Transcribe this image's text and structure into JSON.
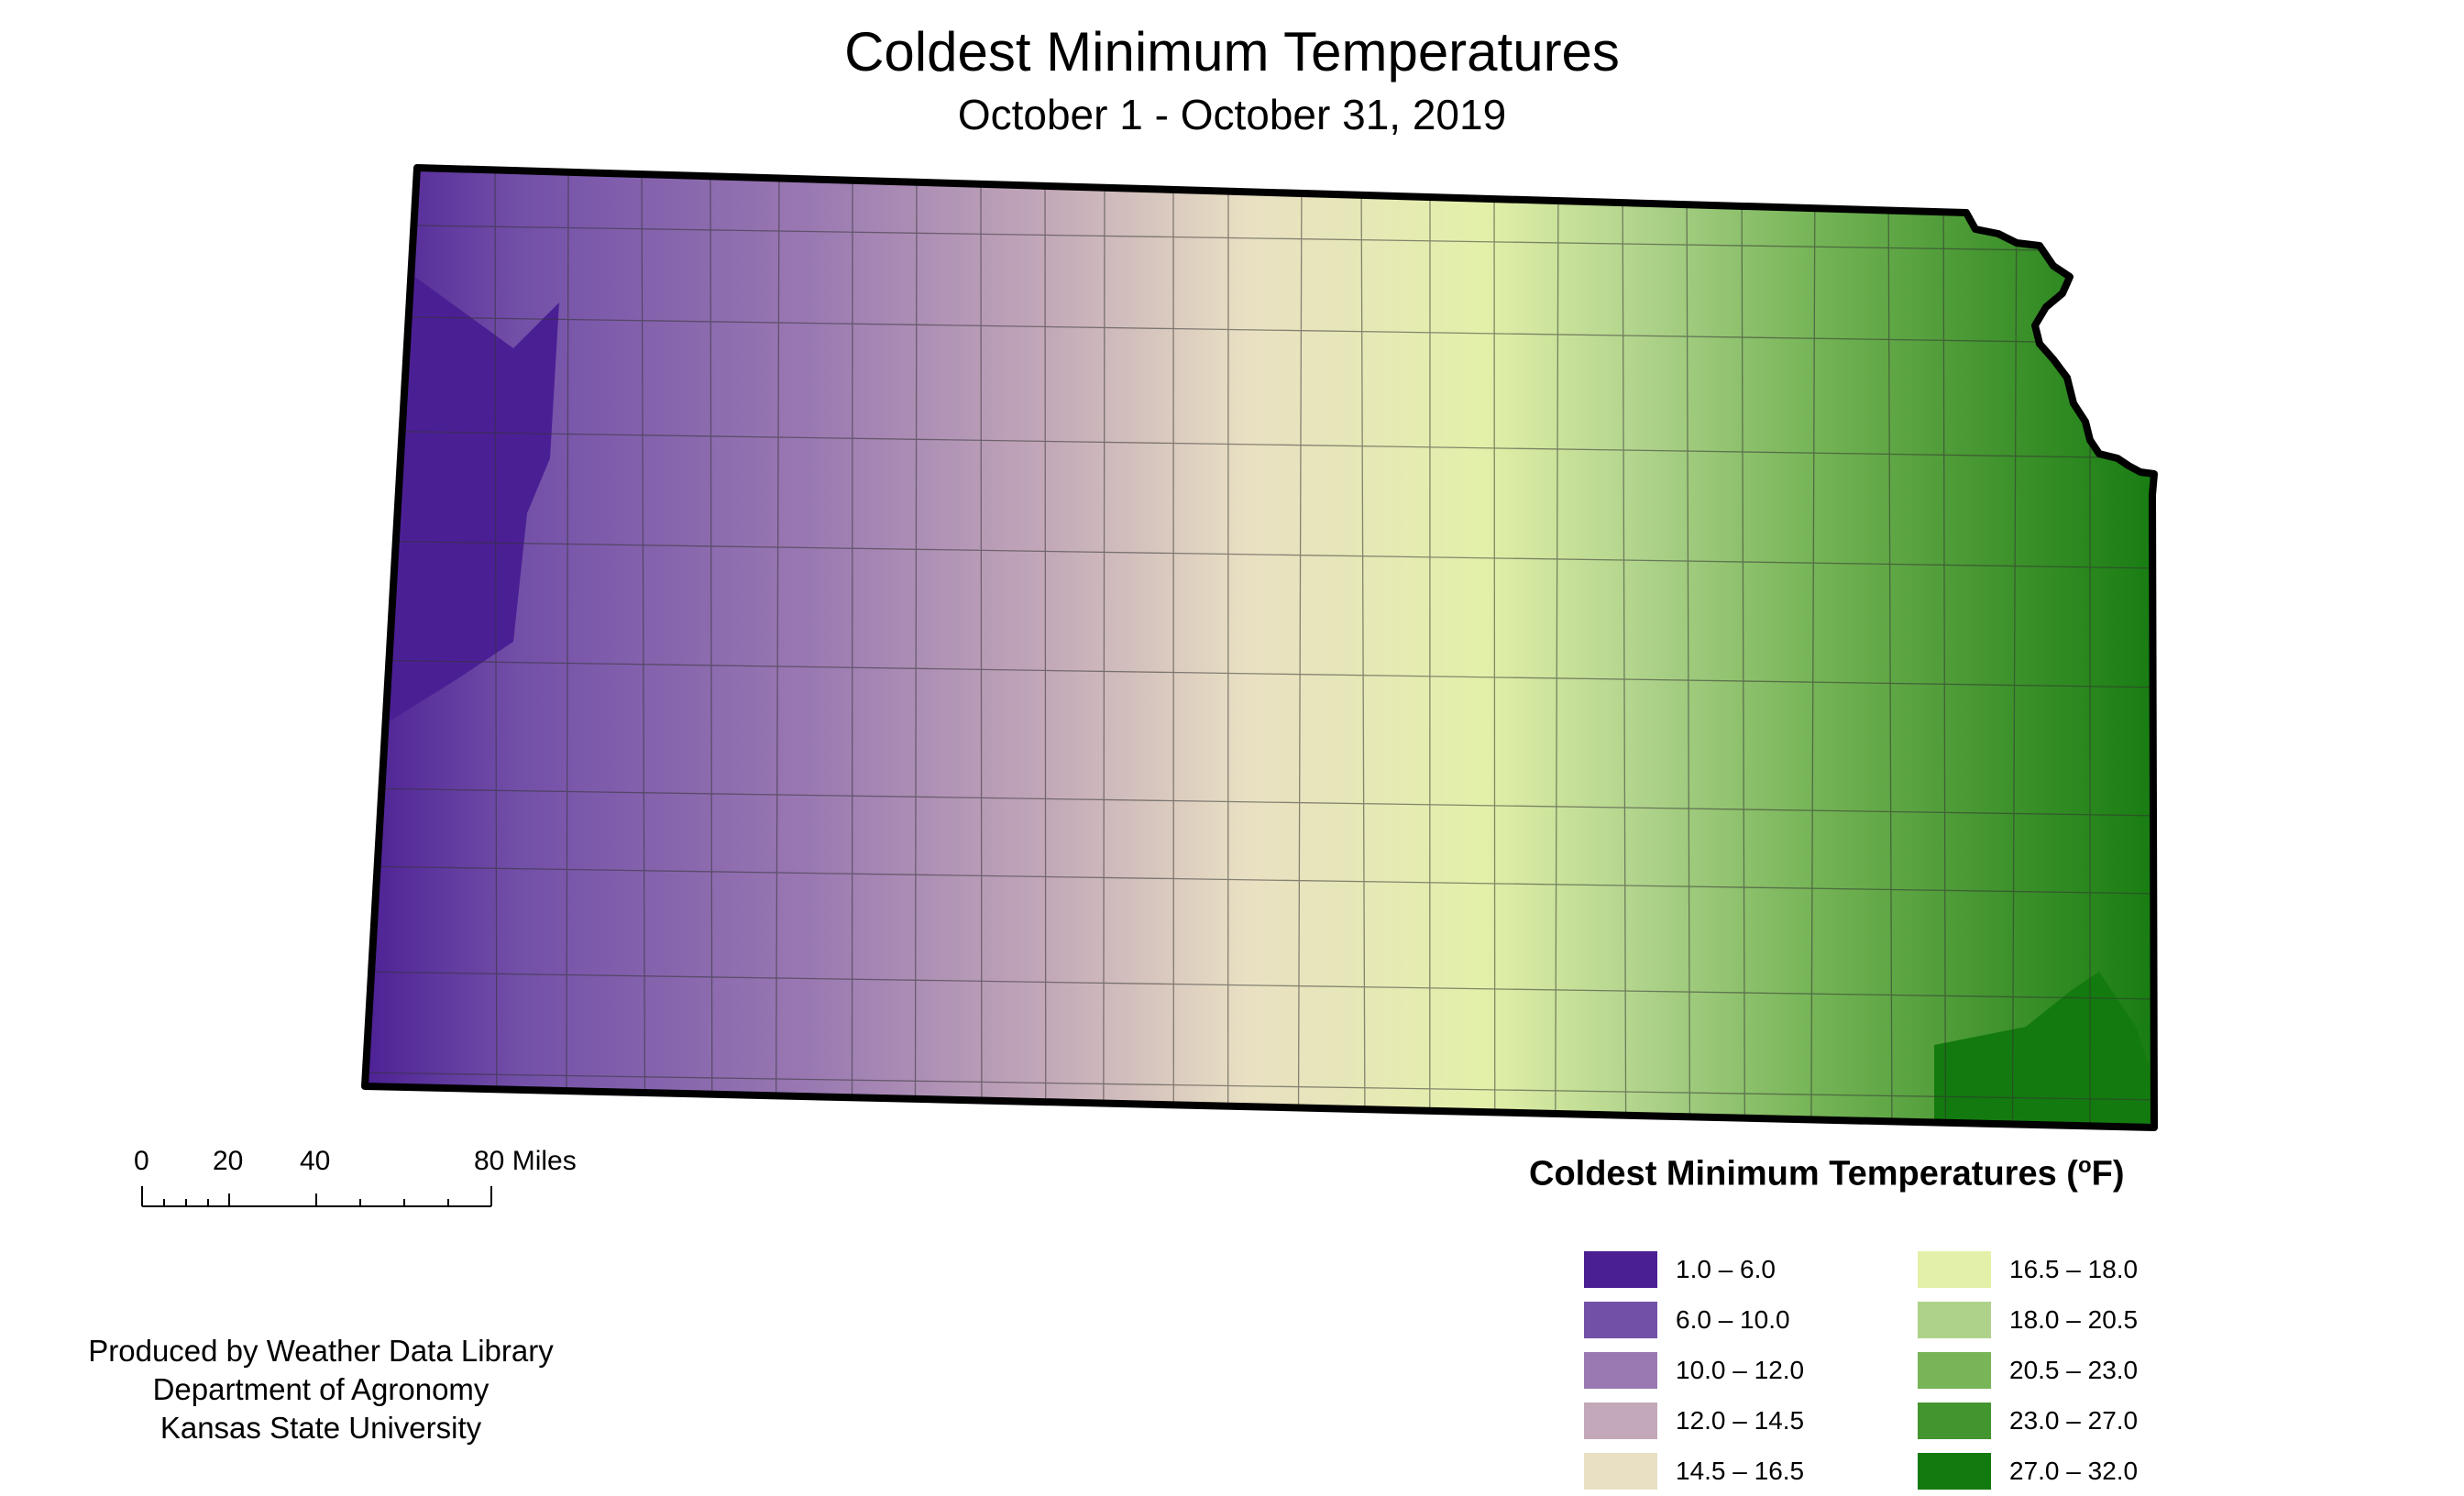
{
  "title": "Coldest Minimum Temperatures",
  "subtitle": "October 1 - October 31, 2019",
  "map": {
    "region": "Kansas",
    "variable": "coldest minimum temperature",
    "gradient": "cold (purple) in the west to warm (green) in the east"
  },
  "scale_bar": {
    "ticks": [
      "0",
      "20",
      "40",
      "80 Miles"
    ]
  },
  "credits": {
    "line1": "Produced by Weather Data Library",
    "line2": "Department of Agronomy",
    "line3": "Kansas State University"
  },
  "legend": {
    "title": "Coldest Minimum Temperatures (",
    "unit_sup": "o",
    "unit_tail": "F)",
    "items": [
      {
        "label": "1.0 – 6.0",
        "color": "#4b1f94"
      },
      {
        "label": "6.0 – 10.0",
        "color": "#7350a8"
      },
      {
        "label": "10.0 – 12.0",
        "color": "#9a79b2"
      },
      {
        "label": "12.0 – 14.5",
        "color": "#c2a8b8"
      },
      {
        "label": "14.5 – 16.5",
        "color": "#e9e0c3"
      },
      {
        "label": "16.5 – 18.0",
        "color": "#e3f0a9"
      },
      {
        "label": "18.0 – 20.5",
        "color": "#aed28a"
      },
      {
        "label": "20.5 – 23.0",
        "color": "#77b558"
      },
      {
        "label": "23.0 – 27.0",
        "color": "#43952f"
      },
      {
        "label": "27.0 – 32.0",
        "color": "#137a0f"
      }
    ]
  }
}
